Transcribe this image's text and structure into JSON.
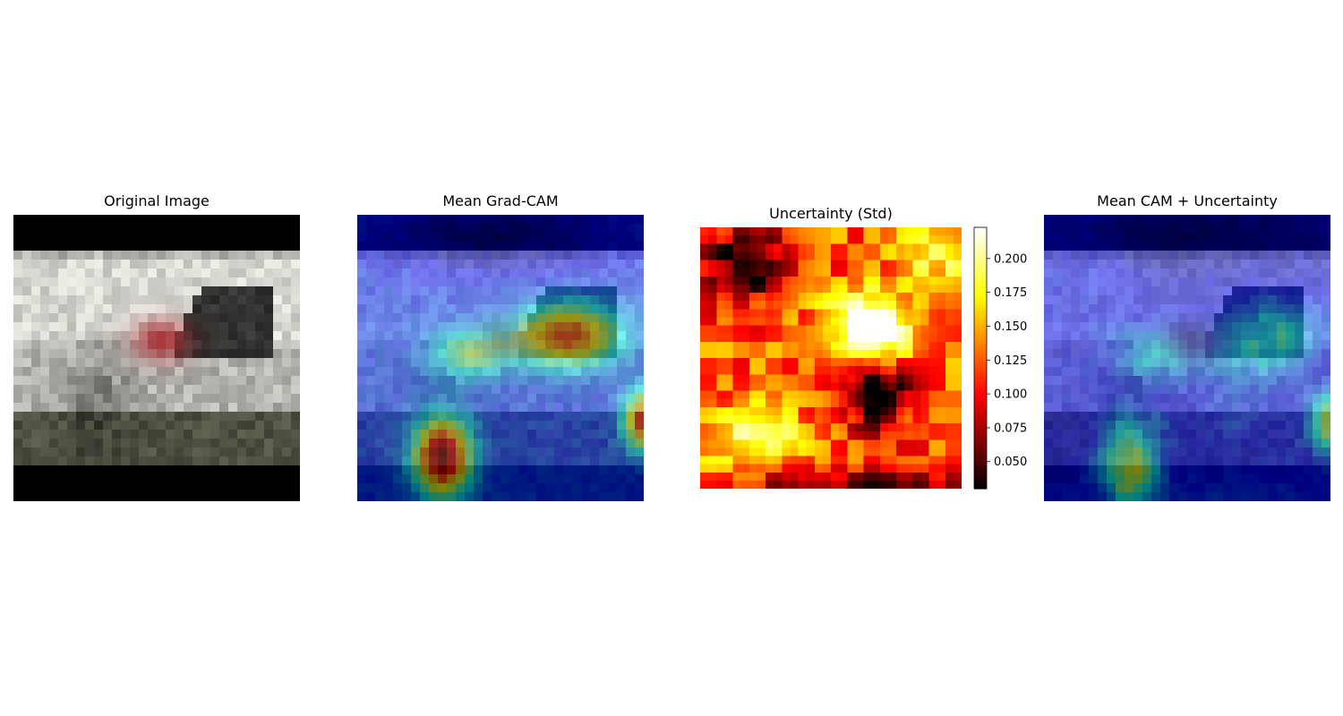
{
  "figure": {
    "panels": [
      {
        "id": "original",
        "title": "Original Image"
      },
      {
        "id": "mean_cam",
        "title": "Mean Grad-CAM"
      },
      {
        "id": "uncertainty",
        "title": "Uncertainty (Std)"
      },
      {
        "id": "overlay",
        "title": "Mean CAM + Uncertainty"
      }
    ]
  },
  "chart_data": [
    {
      "type": "image",
      "title": "Original Image",
      "content": "32x32 low-resolution photo of a silver car"
    },
    {
      "type": "heatmap",
      "title": "Mean Grad-CAM",
      "colormap": "jet overlay on original image",
      "hotspots": [
        {
          "region": "rear window / tail light",
          "level": "high"
        },
        {
          "region": "front wheel",
          "level": "very high"
        },
        {
          "region": "right edge",
          "level": "high"
        }
      ]
    },
    {
      "type": "heatmap",
      "title": "Uncertainty (Std)",
      "colormap": "hot",
      "colorbar": {
        "ticks": [
          0.05,
          0.075,
          0.1,
          0.125,
          0.15,
          0.175,
          0.2
        ],
        "tick_labels": [
          "0.050",
          "0.075",
          "0.100",
          "0.125",
          "0.150",
          "0.175",
          "0.200"
        ],
        "range": [
          0.03,
          0.223
        ]
      }
    },
    {
      "type": "heatmap",
      "title": "Mean CAM + Uncertainty",
      "colormap": "jet overlay on original image"
    }
  ]
}
